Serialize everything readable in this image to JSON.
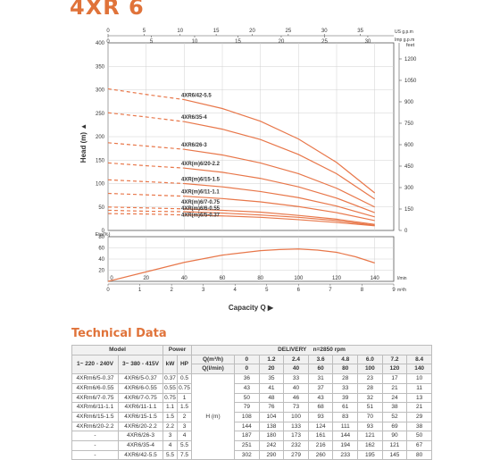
{
  "page": {
    "title": "4XR 6"
  },
  "chart_data": [
    {
      "type": "line",
      "name": "head-curves",
      "xlabel": "Capacity Q",
      "ylabel": "Head (m)",
      "xlim": [
        0,
        150
      ],
      "ylim": [
        0,
        400
      ],
      "x_unit": "l/min",
      "x_ticks": [
        0,
        20,
        40,
        60,
        80,
        100,
        120,
        140
      ],
      "y_ticks": [
        0,
        50,
        100,
        150,
        200,
        250,
        300,
        350,
        400
      ],
      "top_axes": [
        {
          "unit": "US g.p.m",
          "ticks": [
            0,
            5,
            10,
            15,
            20,
            25,
            30,
            35
          ]
        },
        {
          "unit": "Imp g.p.m",
          "ticks": [
            0,
            5,
            10,
            15,
            20,
            25,
            30
          ]
        }
      ],
      "right_axis": {
        "unit": "feet",
        "ticks": [
          0,
          150,
          300,
          450,
          600,
          750,
          900,
          1050,
          1200
        ]
      },
      "series": [
        {
          "name": "4XR6/42-5.5",
          "x": [
            0,
            20,
            40,
            60,
            80,
            100,
            120,
            140
          ],
          "y": [
            302,
            290,
            279,
            260,
            233,
            195,
            145,
            80
          ]
        },
        {
          "name": "4XR6/35-4",
          "x": [
            0,
            20,
            40,
            60,
            80,
            100,
            120,
            140
          ],
          "y": [
            251,
            242,
            232,
            216,
            194,
            162,
            121,
            67
          ]
        },
        {
          "name": "4XR6/26-3",
          "x": [
            0,
            20,
            40,
            60,
            80,
            100,
            120,
            140
          ],
          "y": [
            187,
            180,
            173,
            161,
            144,
            121,
            90,
            50
          ]
        },
        {
          "name": "4XR(m)6/20-2.2",
          "x": [
            0,
            20,
            40,
            60,
            80,
            100,
            120,
            140
          ],
          "y": [
            144,
            138,
            133,
            124,
            111,
            93,
            69,
            38
          ]
        },
        {
          "name": "4XR(m)6/15-1.5",
          "x": [
            0,
            20,
            40,
            60,
            80,
            100,
            120,
            140
          ],
          "y": [
            108,
            104,
            100,
            93,
            83,
            70,
            52,
            29
          ]
        },
        {
          "name": "4XR(m)6/11-1.1",
          "x": [
            0,
            20,
            40,
            60,
            80,
            100,
            120,
            140
          ],
          "y": [
            79,
            76,
            73,
            68,
            61,
            51,
            38,
            21
          ]
        },
        {
          "name": "4XR(m)6/7-0.75",
          "x": [
            0,
            20,
            40,
            60,
            80,
            100,
            120,
            140
          ],
          "y": [
            50,
            48,
            46,
            43,
            39,
            32,
            24,
            13
          ]
        },
        {
          "name": "4XR(m)6/6-0.55",
          "x": [
            0,
            20,
            40,
            60,
            80,
            100,
            120,
            140
          ],
          "y": [
            43,
            41,
            40,
            37,
            33,
            28,
            21,
            11
          ]
        },
        {
          "name": "4XR(m)6/5-0.37",
          "x": [
            0,
            20,
            40,
            60,
            80,
            100,
            120,
            140
          ],
          "y": [
            36,
            35,
            33,
            31,
            28,
            23,
            17,
            10
          ]
        }
      ]
    },
    {
      "type": "line",
      "name": "efficiency-curve",
      "ylabel": "Eta(%)",
      "xlabel": "Capacity Q",
      "xlim": [
        0,
        150
      ],
      "ylim": [
        0,
        80
      ],
      "x_ticks": [
        0,
        20,
        40,
        60,
        80,
        100,
        120,
        140
      ],
      "x_ticks_m3h": [
        0,
        1,
        2,
        3,
        4,
        5,
        6,
        7,
        8,
        9
      ],
      "x_units": [
        "l/min",
        "m³/h"
      ],
      "y_ticks": [
        0,
        20,
        40,
        60,
        80
      ],
      "series": [
        {
          "name": "Eta",
          "x": [
            0,
            20,
            40,
            60,
            80,
            90,
            100,
            110,
            120,
            130,
            140
          ],
          "y": [
            0,
            17,
            34,
            47,
            55,
            57,
            58,
            56,
            52,
            44,
            33
          ]
        }
      ]
    }
  ],
  "table": {
    "title": "Technical Data",
    "group_headers": {
      "model": "Model",
      "power": "Power",
      "delivery": "DELIVERY",
      "rpm": "n=2850 rpm"
    },
    "sub_headers": {
      "single_phase": "1~ 220 - 240V",
      "three_phase": "3~ 380 - 415V",
      "kw": "kW",
      "hp": "HP"
    },
    "q_labels": [
      "Q(m³/h)",
      "Q(l/min)"
    ],
    "q_m3h": [
      "0",
      "1.2",
      "2.4",
      "3.6",
      "4.8",
      "6.0",
      "7.2",
      "8.4"
    ],
    "q_lmin": [
      "0",
      "20",
      "40",
      "60",
      "80",
      "100",
      "120",
      "140"
    ],
    "h_label": "H (m)",
    "rows": [
      {
        "m1": "4XRm6/5-0.37",
        "m3": "4XR6/5-0.37",
        "kw": "0.37",
        "hp": "0.5",
        "h": [
          "36",
          "35",
          "33",
          "31",
          "28",
          "23",
          "17",
          "10"
        ]
      },
      {
        "m1": "4XRm6/6-0.55",
        "m3": "4XR6/6-0.55",
        "kw": "0.55",
        "hp": "0.75",
        "h": [
          "43",
          "41",
          "40",
          "37",
          "33",
          "28",
          "21",
          "11"
        ]
      },
      {
        "m1": "4XRm6/7-0.75",
        "m3": "4XR6/7-0.75",
        "kw": "0.75",
        "hp": "1",
        "h": [
          "50",
          "48",
          "46",
          "43",
          "39",
          "32",
          "24",
          "13"
        ]
      },
      {
        "m1": "4XRm6/11-1.1",
        "m3": "4XR6/11-1.1",
        "kw": "1.1",
        "hp": "1.5",
        "h": [
          "79",
          "76",
          "73",
          "68",
          "61",
          "51",
          "38",
          "21"
        ]
      },
      {
        "m1": "4XRm6/15-1.5",
        "m3": "4XR6/15-1.5",
        "kw": "1.5",
        "hp": "2",
        "h": [
          "108",
          "104",
          "100",
          "93",
          "83",
          "70",
          "52",
          "29"
        ]
      },
      {
        "m1": "4XRm6/20-2.2",
        "m3": "4XR6/20-2.2",
        "kw": "2.2",
        "hp": "3",
        "h": [
          "144",
          "138",
          "133",
          "124",
          "111",
          "93",
          "69",
          "38"
        ]
      },
      {
        "m1": "-",
        "m3": "4XR6/26-3",
        "kw": "3",
        "hp": "4",
        "h": [
          "187",
          "180",
          "173",
          "161",
          "144",
          "121",
          "90",
          "50"
        ]
      },
      {
        "m1": "-",
        "m3": "4XR6/35-4",
        "kw": "4",
        "hp": "5.5",
        "h": [
          "251",
          "242",
          "232",
          "216",
          "194",
          "162",
          "121",
          "67"
        ]
      },
      {
        "m1": "-",
        "m3": "4XR6/42-5.5",
        "kw": "5.5",
        "hp": "7.5",
        "h": [
          "302",
          "290",
          "279",
          "260",
          "233",
          "195",
          "145",
          "80"
        ]
      }
    ]
  },
  "colors": {
    "accent": "#e0733a",
    "curve": "#e8774a",
    "grid": "#d0d0d0",
    "axis": "#555555"
  }
}
